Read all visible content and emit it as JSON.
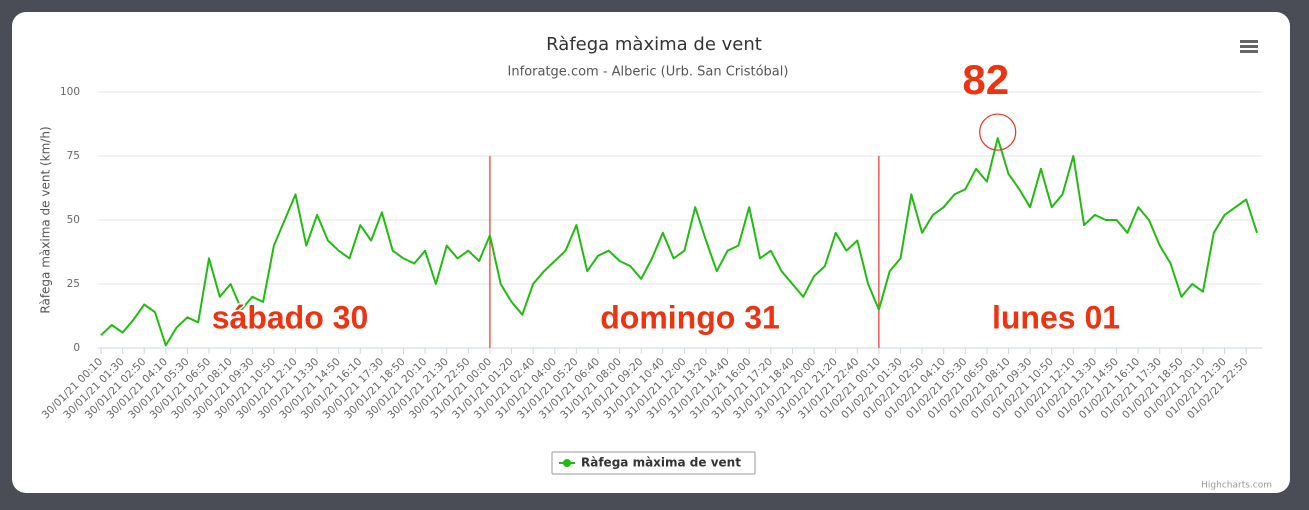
{
  "chart_data": {
    "type": "line",
    "title": "Ràfega màxima de vent",
    "subtitle": "Inforatge.com - Alberic (Urb. San Cristóbal)",
    "y_label": "Ràfega màxima de vent (km/h)",
    "credits": "Highcharts.com",
    "annotations": [
      "sábado 30",
      "domingo 31",
      "lunes 01"
    ],
    "categories": [
      "30/01/21 00:10",
      null,
      "30/01/21 01:30",
      null,
      "30/01/21 02:50",
      null,
      "30/01/21 04:10",
      null,
      "30/01/21 05:30",
      null,
      "30/01/21 06:50",
      null,
      "30/01/21 08:10",
      null,
      "30/01/21 09:30",
      null,
      "30/01/21 10:50",
      null,
      "30/01/21 12:10",
      null,
      "30/01/21 13:30",
      null,
      "30/01/21 14:50",
      null,
      "30/01/21 16:10",
      null,
      "30/01/21 17:30",
      null,
      "30/01/21 18:50",
      null,
      "30/01/21 20:10",
      null,
      "30/01/21 21:30",
      null,
      "30/01/21 22:50",
      null,
      "31/01/21 00:00",
      null,
      "31/01/21 01:20",
      null,
      "31/01/21 02:40",
      null,
      "31/01/21 04:00",
      null,
      "31/01/21 05:20",
      null,
      "31/01/21 06:40",
      null,
      "31/01/21 08:00",
      null,
      "31/01/21 09:20",
      null,
      "31/01/21 10:40",
      null,
      "31/01/21 12:00",
      null,
      "31/01/21 13:20",
      null,
      "31/01/21 14:40",
      null,
      "31/01/21 16:00",
      null,
      "31/01/21 17:20",
      null,
      "31/01/21 18:40",
      null,
      "31/01/21 20:00",
      null,
      "31/01/21 21:20",
      null,
      "31/01/21 22:40",
      null,
      "01/02/21 00:10",
      null,
      "01/02/21 01:30",
      null,
      "01/02/21 02:50",
      null,
      "01/02/21 04:10",
      null,
      "01/02/21 05:30",
      null,
      "01/02/21 06:50",
      null,
      "01/02/21 08:10",
      null,
      "01/02/21 09:30",
      null,
      "01/02/21 10:50",
      null,
      "01/02/21 12:10",
      null,
      "01/02/21 13:30",
      null,
      "01/02/21 14:50",
      null,
      "01/02/21 16:10",
      null,
      "01/02/21 17:30",
      null,
      "01/02/21 18:50",
      null,
      "01/02/21 20:10",
      null,
      "01/02/21 21:30",
      null,
      "01/02/21 22:50",
      null
    ],
    "series": [
      {
        "name": "Ràfega màxima de vent",
        "color": "#22bb11",
        "values": [
          5,
          9,
          6,
          11,
          17,
          14,
          1,
          8,
          12,
          10,
          35,
          20,
          25,
          15,
          20,
          18,
          40,
          50,
          60,
          40,
          52,
          42,
          38,
          35,
          48,
          42,
          53,
          38,
          35,
          33,
          38,
          25,
          40,
          35,
          38,
          34,
          44,
          25,
          18,
          13,
          25,
          30,
          34,
          38,
          48,
          30,
          36,
          38,
          34,
          32,
          27,
          35,
          45,
          35,
          38,
          55,
          42,
          30,
          38,
          40,
          55,
          35,
          38,
          30,
          25,
          20,
          28,
          32,
          45,
          38,
          42,
          25,
          15,
          30,
          35,
          60,
          45,
          52,
          55,
          60,
          62,
          70,
          65,
          82,
          68,
          62,
          55,
          70,
          55,
          60,
          75,
          48,
          52,
          50,
          50,
          45,
          55,
          50,
          40,
          33,
          20,
          25,
          22,
          45,
          52,
          55,
          58,
          45
        ]
      }
    ],
    "plot_lines": [
      "31/01/21 00:00",
      "01/02/21 00:10"
    ],
    "plot_line_color": "#ee3322",
    "plot_line_ylim": [
      0,
      75
    ],
    "ylim": [
      0,
      100
    ],
    "yticks": [
      0,
      25,
      50,
      75,
      100
    ],
    "grid": true
  }
}
